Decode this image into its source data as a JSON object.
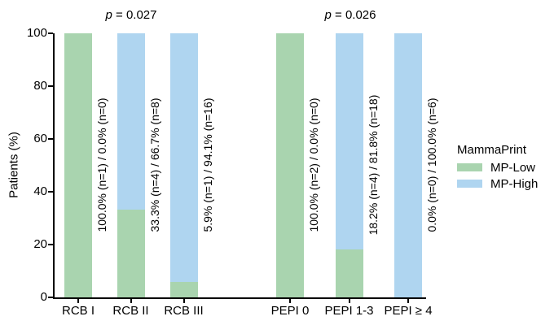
{
  "chart_data": {
    "type": "bar",
    "stacked": true,
    "orientation": "vertical",
    "title": "",
    "xlabel": "",
    "ylabel": "Patients (%)",
    "ylim": [
      0,
      100
    ],
    "yticks": [
      0,
      20,
      40,
      60,
      80,
      100
    ],
    "grid": false,
    "categories": [
      "RCB I",
      "RCB II",
      "RCB III",
      "PEPI 0",
      "PEPI 1-3",
      "PEPI ≥ 4"
    ],
    "series": [
      {
        "name": "MP-Low",
        "color": "#a9d4af",
        "values": [
          100.0,
          33.3,
          5.9,
          100.0,
          18.2,
          0.0
        ],
        "n": [
          1,
          4,
          1,
          2,
          4,
          0
        ]
      },
      {
        "name": "MP-High",
        "color": "#afd5f0",
        "values": [
          0.0,
          66.7,
          94.1,
          0.0,
          81.8,
          100.0
        ],
        "n": [
          0,
          8,
          16,
          0,
          18,
          6
        ]
      }
    ],
    "bar_labels": [
      "100.0% (n=1) / 0.0% (n=0)",
      "33.3% (n=4) / 66.7% (n=8)",
      "5.9% (n=1) / 94.1% (n=16)",
      "100.0% (n=2) / 0.0% (n=0)",
      "18.2% (n=4) / 81.8% (n=18)",
      "0.0% (n=0) / 100.0% (n=6)"
    ],
    "annotations": [
      {
        "italic": "p",
        "text": " = 0.027",
        "group": "RCB"
      },
      {
        "italic": "p",
        "text": " = 0.026",
        "group": "PEPI"
      }
    ],
    "legend": {
      "title": "MammaPrint",
      "position": "right",
      "items": [
        {
          "label": "MP-Low",
          "color": "#a9d4af"
        },
        {
          "label": "MP-High",
          "color": "#afd5f0"
        }
      ]
    }
  }
}
